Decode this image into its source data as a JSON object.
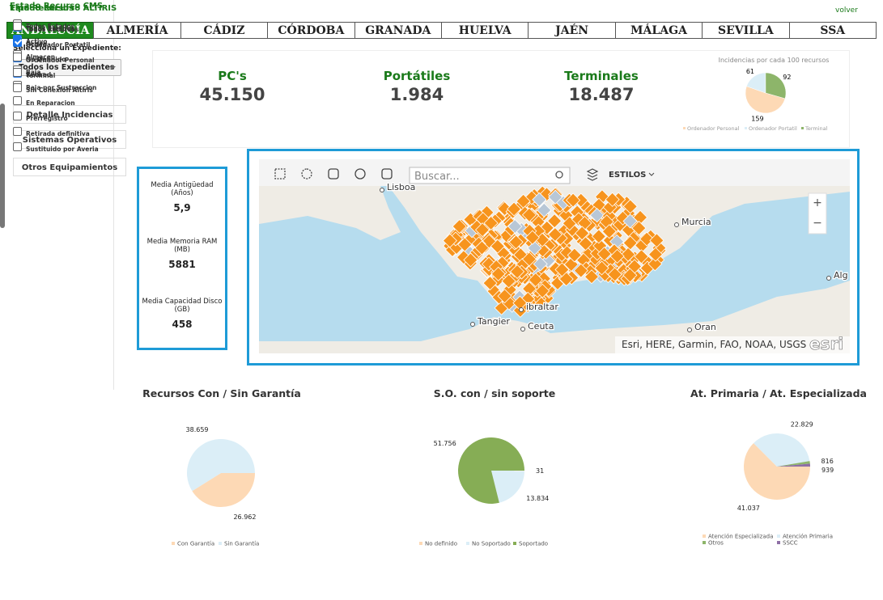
{
  "nav": {
    "link": "volver",
    "tabs": [
      "ANDALUCÍA",
      "ALMERÍA",
      "CÁDIZ",
      "CÓRDOBA",
      "GRANADA",
      "HUELVA",
      "JAÉN",
      "MÁLAGA",
      "SEVILLA",
      "SSA"
    ]
  },
  "sidebar": {
    "expediente_label": "Selecciona un Expediente:",
    "expediente_value": "Todos los Expedientes",
    "buttons": [
      "Detalle Incidencias",
      "Sistemas Operativos",
      "Otros Equipamientos"
    ],
    "groups": [
      {
        "title": "Tipo Recursos",
        "items": [
          {
            "label": "Todos Recursos",
            "checked": true
          },
          {
            "label": "Ordenador Portatil",
            "checked": true
          },
          {
            "label": "Ordenador Personal",
            "checked": true
          },
          {
            "label": "Terminal",
            "checked": true
          }
        ]
      },
      {
        "title": "Estado Recurso CMS",
        "items": [
          {
            "label": "Todos Estados",
            "checked": false
          },
          {
            "label": "Activo",
            "checked": true
          },
          {
            "label": "Almacen",
            "checked": false
          },
          {
            "label": "Baja",
            "checked": false
          },
          {
            "label": "Baja por Sustraccion",
            "checked": false
          },
          {
            "label": "En Reparacion",
            "checked": false
          },
          {
            "label": "Prerregistro",
            "checked": false
          },
          {
            "label": "Retirada definitiva",
            "checked": false
          },
          {
            "label": "Sustituido por Averia",
            "checked": false
          }
        ]
      },
      {
        "title": "Estado Recurso ALTIRIS",
        "items": [
          {
            "label": "Todos Estados",
            "checked": false
          },
          {
            "label": "Active",
            "checked": true
          },
          {
            "label": "No Definido",
            "checked": false
          },
          {
            "label": "Retired",
            "checked": false
          },
          {
            "label": "Sin Conexion Altiris",
            "checked": false
          }
        ]
      }
    ]
  },
  "kpis": [
    {
      "label": "PC's",
      "value": "45.150"
    },
    {
      "label": "Portátiles",
      "value": "1.984"
    },
    {
      "label": "Terminales",
      "value": "18.487"
    }
  ],
  "incidencias": {
    "title": "Incidencias por cada 100 recursos",
    "labels": [
      "Ordenador Personal",
      "Ordenador Portatil",
      "Terminal"
    ],
    "values": [
      159,
      61,
      92
    ],
    "colors": [
      "#fdd9b5",
      "#dbeef7",
      "#8db56a"
    ]
  },
  "stats": [
    {
      "label": "Media Antigüedad (Años)",
      "value": "5,9"
    },
    {
      "label": "Media Memoria RAM (MB)",
      "value": "5881"
    },
    {
      "label": "Media Capacidad Disco (GB)",
      "value": "458"
    }
  ],
  "map": {
    "search_placeholder": "Buscar...",
    "styles": "ESTILOS",
    "zoom": [
      "+",
      "−"
    ],
    "places": [
      "Lisboa",
      "Murcia",
      "Alg",
      "ibraltar",
      "Tangier",
      "Ceuta",
      "Oran"
    ],
    "attribution": "Esri, HERE, Garmin, FAO, NOAA, USGS",
    "logo": "esri"
  },
  "charts": [
    {
      "title": "Recursos Con / Sin Garantía",
      "labels": [
        "Con Garantía",
        "Sin Garantía"
      ],
      "values": [
        26962,
        38659
      ],
      "value_labels": [
        "26.962",
        "38.659"
      ],
      "colors": [
        "#fdd9b5",
        "#dbeef7"
      ]
    },
    {
      "title": "S.O. con / sin soporte",
      "labels": [
        "No definido",
        "No Soportado",
        "Soportado"
      ],
      "values": [
        31,
        13834,
        51756
      ],
      "value_labels": [
        "31",
        "13.834",
        "51.756"
      ],
      "colors": [
        "#fdd9b5",
        "#dbeef7",
        "#86ad55"
      ]
    },
    {
      "title": "At. Primaria / At. Especializada",
      "labels": [
        "Atención Especializada",
        "Atención Primaria",
        "Otros",
        "SSCC"
      ],
      "values": [
        41037,
        22829,
        816,
        939
      ],
      "value_labels": [
        "41.037",
        "22.829",
        "816",
        "939"
      ],
      "colors": [
        "#fdd9b5",
        "#dbeef7",
        "#8db56a",
        "#8e6fa6"
      ]
    }
  ]
}
